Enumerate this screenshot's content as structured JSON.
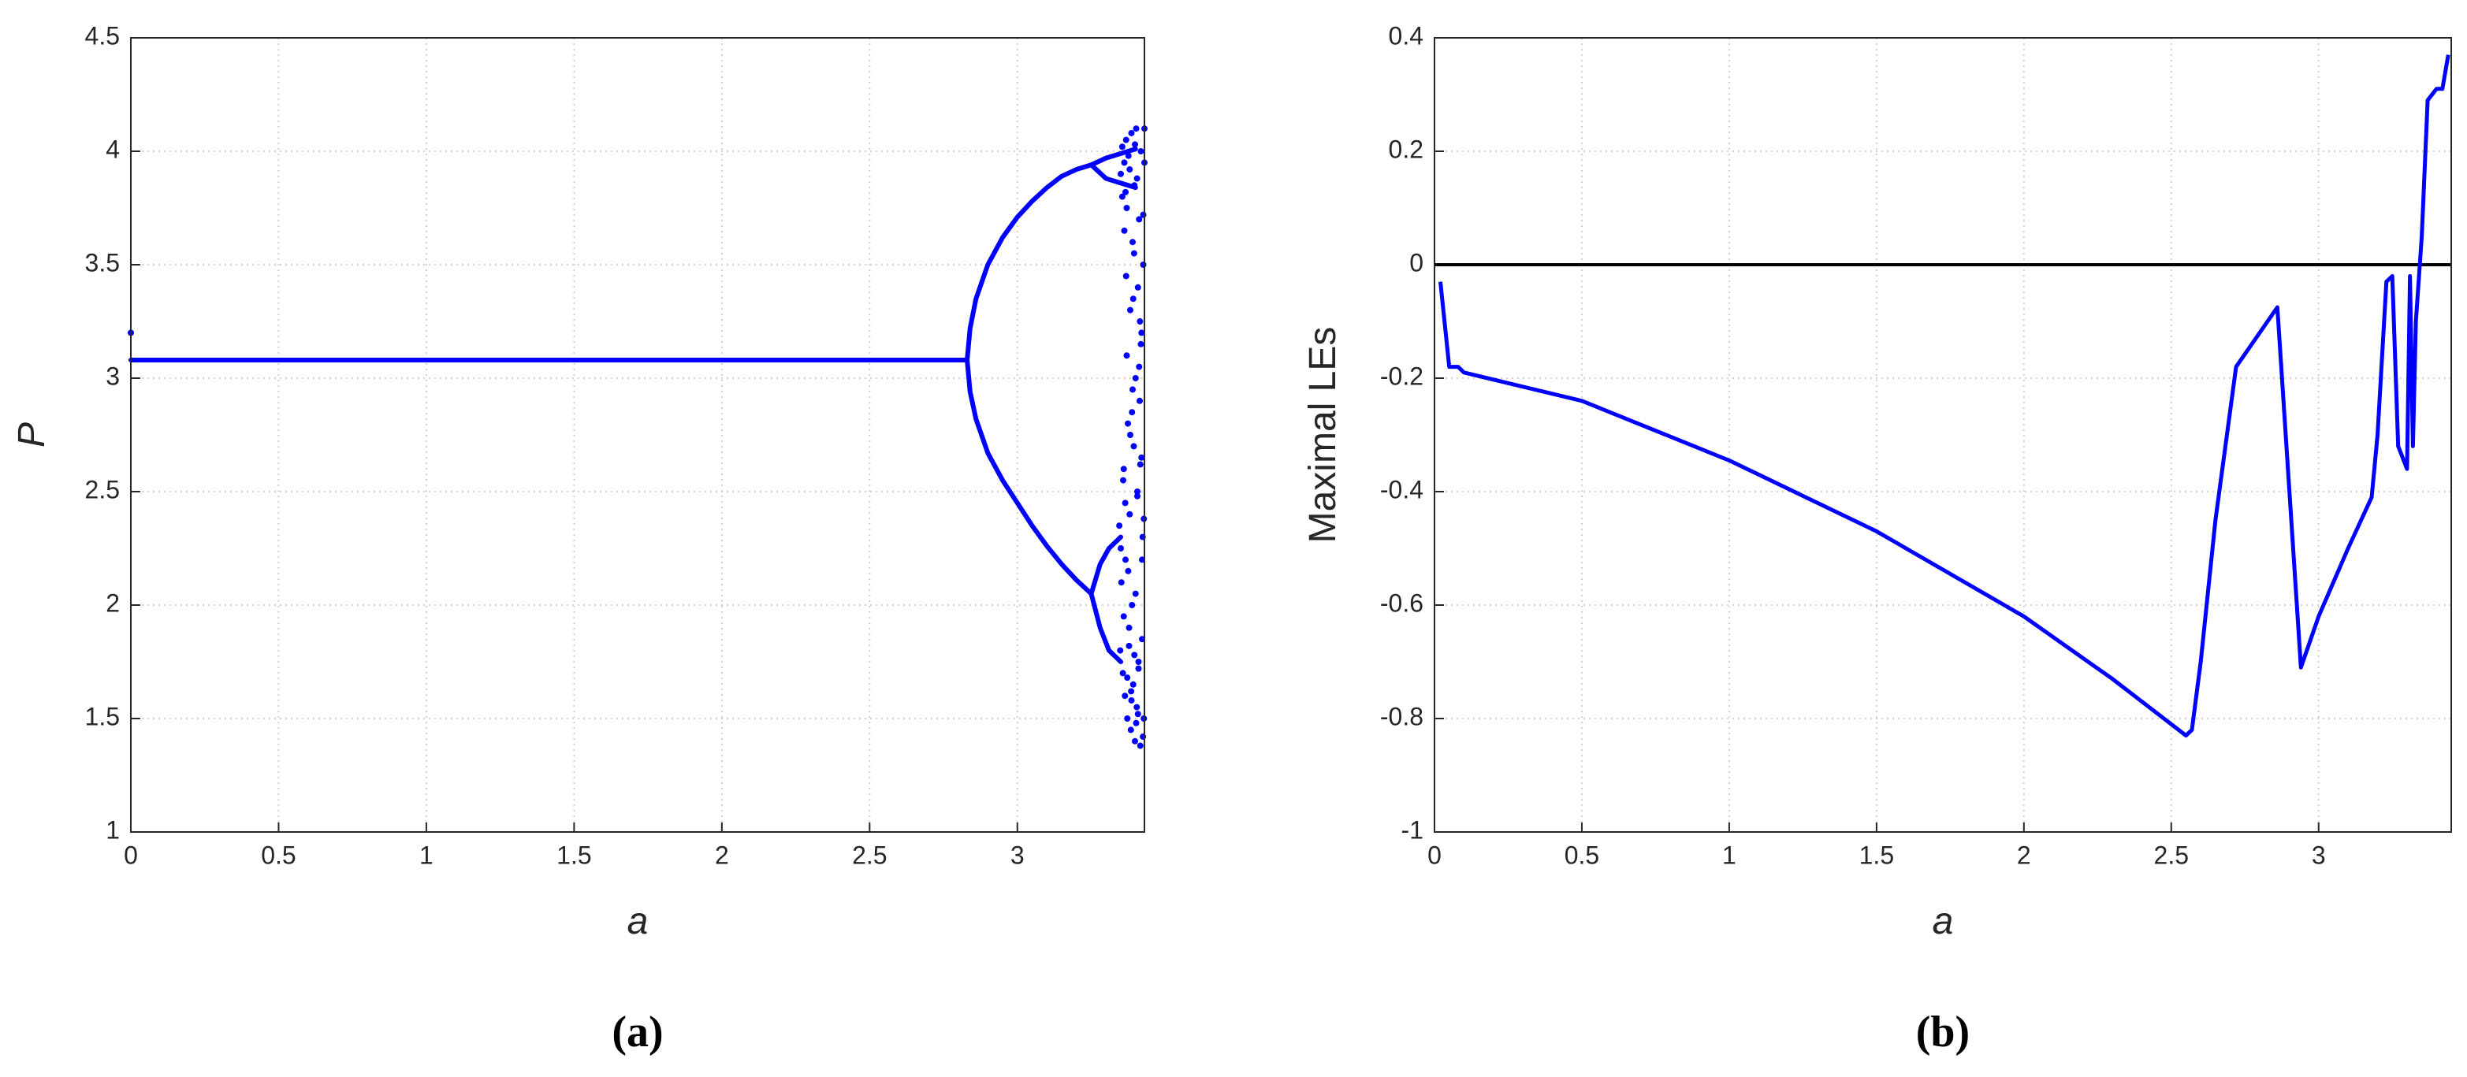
{
  "chart_data": [
    {
      "type": "scatter",
      "caption": "(a)",
      "x_label": "a",
      "y_label": "P",
      "xlim": [
        0,
        3.43
      ],
      "ylim": [
        1,
        4.5
      ],
      "xticks": [
        0,
        0.5,
        1,
        1.5,
        2,
        2.5,
        3
      ],
      "yticks": [
        1,
        1.5,
        2,
        2.5,
        3,
        3.5,
        4,
        4.5
      ],
      "grid": true,
      "color": "#0000ff",
      "series": [
        {
          "style": "dots",
          "x": [
            0
          ],
          "values": [
            3.2
          ]
        },
        {
          "style": "line",
          "x": [
            0,
            2.83
          ],
          "values": [
            3.08,
            3.08
          ]
        },
        {
          "style": "line",
          "x": [
            2.83,
            2.84,
            2.86,
            2.9,
            2.95,
            3.0,
            3.05,
            3.1,
            3.15,
            3.2,
            3.25
          ],
          "values": [
            3.08,
            3.22,
            3.35,
            3.5,
            3.62,
            3.71,
            3.78,
            3.84,
            3.89,
            3.92,
            3.94
          ]
        },
        {
          "style": "line",
          "x": [
            3.25,
            3.3,
            3.35,
            3.4
          ],
          "values": [
            3.94,
            3.97,
            3.99,
            4.01
          ]
        },
        {
          "style": "line",
          "x": [
            3.25,
            3.3,
            3.35,
            3.4
          ],
          "values": [
            3.94,
            3.88,
            3.86,
            3.84
          ]
        },
        {
          "style": "line",
          "x": [
            2.83,
            2.84,
            2.86,
            2.9,
            2.95,
            3.0,
            3.05,
            3.1,
            3.15,
            3.2,
            3.25
          ],
          "values": [
            3.08,
            2.94,
            2.82,
            2.67,
            2.55,
            2.45,
            2.35,
            2.26,
            2.18,
            2.11,
            2.05
          ]
        },
        {
          "style": "line",
          "x": [
            3.25,
            3.28,
            3.31,
            3.35
          ],
          "values": [
            2.05,
            2.18,
            2.25,
            2.3
          ]
        },
        {
          "style": "line",
          "x": [
            3.25,
            3.28,
            3.31,
            3.35
          ],
          "values": [
            2.05,
            1.9,
            1.8,
            1.75
          ]
        },
        {
          "style": "dots",
          "x": [
            3.345,
            3.348,
            3.35,
            3.352,
            3.355,
            3.357,
            3.36,
            3.362,
            3.364,
            3.366,
            3.368,
            3.37,
            3.372,
            3.374,
            3.376,
            3.378,
            3.38,
            3.382,
            3.384,
            3.386,
            3.388,
            3.39,
            3.392,
            3.394,
            3.396,
            3.398,
            3.4,
            3.402,
            3.404,
            3.406,
            3.408,
            3.41,
            3.412,
            3.414,
            3.416,
            3.418,
            3.42,
            3.422,
            3.424,
            3.426,
            3.428,
            3.43,
            3.35,
            3.355,
            3.36,
            3.365,
            3.37,
            3.375,
            3.38,
            3.385,
            3.39,
            3.395,
            3.4,
            3.405,
            3.41,
            3.415,
            3.42,
            3.425,
            3.43,
            3.358,
            3.368,
            3.378,
            3.388,
            3.398,
            3.408,
            3.418,
            3.428,
            3.362,
            3.372,
            3.382,
            3.392,
            3.402,
            3.412,
            3.422,
            3.366,
            3.386,
            3.406,
            3.426,
            3.396,
            3.416
          ],
          "values": [
            2.35,
            1.8,
            3.9,
            2.1,
            4.02,
            1.7,
            2.6,
            3.95,
            1.6,
            2.2,
            4.05,
            3.1,
            1.5,
            2.8,
            3.98,
            1.9,
            2.4,
            3.3,
            1.45,
            4.08,
            2.0,
            3.6,
            1.65,
            2.7,
            3.85,
            1.4,
            3.0,
            4.1,
            1.55,
            2.5,
            3.4,
            1.75,
            3.7,
            2.9,
            1.38,
            4.0,
            3.2,
            1.85,
            2.3,
            3.5,
            1.5,
            4.1,
            2.25,
            3.8,
            1.95,
            2.45,
            3.75,
            2.15,
            3.92,
            1.62,
            2.95,
            3.55,
            2.05,
            3.88,
            1.72,
            3.25,
            2.65,
            1.42,
            3.95,
            2.55,
            3.45,
            1.82,
            2.85,
            4.03,
            1.52,
            3.15,
            2.38,
            3.65,
            1.68,
            2.75,
            3.35,
            1.48,
            3.05,
            2.2,
            3.82,
            1.58,
            2.48,
            3.72,
            1.78,
            2.62
          ]
        }
      ]
    },
    {
      "type": "line",
      "caption": "(b)",
      "x_label": "a",
      "y_label": "Maximal LEs",
      "xlim": [
        0,
        3.45
      ],
      "ylim": [
        -1,
        0.4
      ],
      "xticks": [
        0,
        0.5,
        1,
        1.5,
        2,
        2.5,
        3
      ],
      "yticks": [
        -1,
        -0.8,
        -0.6,
        -0.4,
        -0.2,
        0,
        0.2,
        0.4
      ],
      "grid": true,
      "color": "#0000ff",
      "reference_line": 0,
      "x": [
        0.02,
        0.05,
        0.08,
        0.1,
        0.5,
        1.0,
        1.5,
        2.0,
        2.3,
        2.55,
        2.57,
        2.6,
        2.65,
        2.72,
        2.86,
        2.94,
        3.0,
        3.1,
        3.18,
        3.2,
        3.23,
        3.25,
        3.27,
        3.3,
        3.31,
        3.32,
        3.33,
        3.35,
        3.37,
        3.4,
        3.42,
        3.44
      ],
      "values": [
        -0.03,
        -0.18,
        -0.18,
        -0.19,
        -0.24,
        -0.345,
        -0.47,
        -0.62,
        -0.73,
        -0.83,
        -0.82,
        -0.7,
        -0.45,
        -0.18,
        -0.075,
        -0.71,
        -0.62,
        -0.5,
        -0.41,
        -0.3,
        -0.03,
        -0.02,
        -0.32,
        -0.36,
        -0.02,
        -0.32,
        -0.1,
        0.05,
        0.29,
        0.31,
        0.31,
        0.37
      ]
    }
  ]
}
